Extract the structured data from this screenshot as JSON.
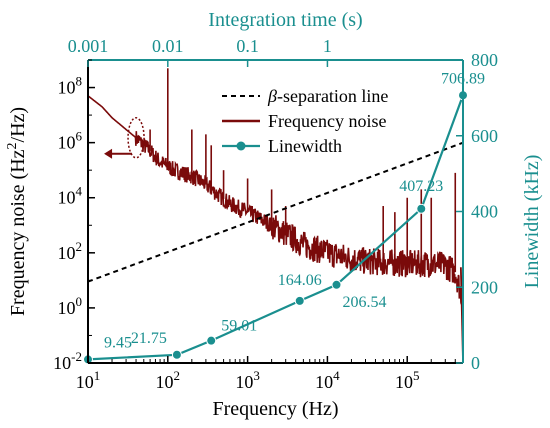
{
  "colors": {
    "frequency_noise": "#7a0a0a",
    "linewidth": "#1a8f8f",
    "separation": "#000000",
    "axis_left": "#000000",
    "axis_teal": "#1a8f8f"
  },
  "chart_data": {
    "type": "line",
    "xlabel": "Frequency (Hz)",
    "x_scale": "log",
    "xlim": [
      10,
      500000
    ],
    "x_ticks": [
      {
        "value": 10,
        "base": "10",
        "exp": "1"
      },
      {
        "value": 100,
        "base": "10",
        "exp": "2"
      },
      {
        "value": 1000,
        "base": "10",
        "exp": "3"
      },
      {
        "value": 10000,
        "base": "10",
        "exp": "4"
      },
      {
        "value": 100000,
        "base": "10",
        "exp": "5"
      }
    ],
    "x2label": "Integration time (s)",
    "x2_ticks": [
      {
        "freq": 10,
        "label": "0.001"
      },
      {
        "freq": 100,
        "label": "0.01"
      },
      {
        "freq": 1000,
        "label": "0.1"
      },
      {
        "freq": 10000,
        "label": "1"
      }
    ],
    "ylabel": {
      "main": "Frequency noise (Hz",
      "sup": "2",
      "tail": "/Hz)"
    },
    "y_scale": "log",
    "ylim": [
      0.01,
      1000000000
    ],
    "y_ticks": [
      {
        "value": 0.01,
        "base": "10",
        "exp": "-2"
      },
      {
        "value": 1,
        "base": "10",
        "exp": "0"
      },
      {
        "value": 100,
        "base": "10",
        "exp": "2"
      },
      {
        "value": 10000,
        "base": "10",
        "exp": "4"
      },
      {
        "value": 1000000,
        "base": "10",
        "exp": "6"
      },
      {
        "value": 100000000,
        "base": "10",
        "exp": "8"
      }
    ],
    "y2label": "Linewidth (kHz)",
    "y2lim": [
      0,
      800
    ],
    "y2_ticks": [
      "0",
      "200",
      "400",
      "600",
      "800"
    ],
    "legend": {
      "separation": {
        "prefix": "β",
        "rest": "-separation line"
      },
      "frequency_noise": "Frequency noise",
      "linewidth": "Linewidth"
    },
    "series": [
      {
        "name": "Linewidth",
        "axis": "right",
        "x": [
          10,
          130,
          350,
          4500,
          13000,
          150000,
          500000
        ],
        "values": [
          9.45,
          21.75,
          59.01,
          164.06,
          206.54,
          407.23,
          706.89
        ],
        "labels": [
          "9.45",
          "21.75",
          "59.01",
          "164.06",
          "206.54",
          "407.23",
          "706.89"
        ]
      },
      {
        "name": "β-separation line",
        "axis": "left",
        "x": [
          10,
          500000
        ],
        "values": [
          9,
          1000000
        ]
      },
      {
        "name": "Frequency noise",
        "axis": "left",
        "x": [
          10,
          15,
          20,
          30,
          40,
          50,
          60,
          70,
          80,
          95,
          120,
          150,
          200,
          300,
          400,
          600,
          1000,
          2000,
          3000,
          5000,
          10000,
          20000,
          30000,
          50000,
          100000,
          200000,
          300000,
          400000,
          500000
        ],
        "values": [
          50000000,
          20000000,
          8000000,
          3000000,
          1500000,
          800000,
          500000,
          300000,
          200000,
          150000,
          100000,
          80000,
          60000,
          30000,
          15000,
          6000,
          3000,
          1000,
          500,
          200,
          100,
          60,
          50,
          45,
          40,
          40,
          35,
          20,
          2
        ],
        "spikes": [
          {
            "x": 100,
            "y": 500000000
          },
          {
            "x": 60,
            "y": 3000000
          },
          {
            "x": 200,
            "y": 3000000
          },
          {
            "x": 300,
            "y": 2000000
          },
          {
            "x": 350,
            "y": 800000
          },
          {
            "x": 500,
            "y": 100000
          },
          {
            "x": 1000,
            "y": 50000
          },
          {
            "x": 2000,
            "y": 20000
          },
          {
            "x": 3000,
            "y": 5000
          },
          {
            "x": 50000,
            "y": 5000
          },
          {
            "x": 70000,
            "y": 3000
          },
          {
            "x": 100000,
            "y": 10000
          },
          {
            "x": 150000,
            "y": 20000
          },
          {
            "x": 200000,
            "y": 10000
          },
          {
            "x": 400000,
            "y": 80000
          }
        ]
      }
    ]
  }
}
